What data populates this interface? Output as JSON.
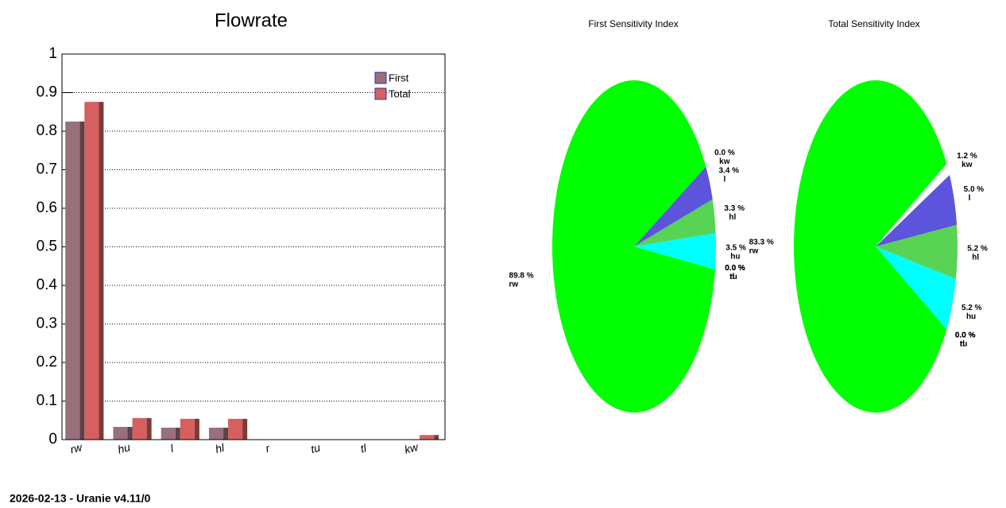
{
  "footer": "2026-02-13 - Uranie v4.11/0",
  "chart_data": [
    {
      "type": "bar",
      "title": "Flowrate",
      "categories": [
        "rw",
        "hu",
        "l",
        "hl",
        "r",
        "tu",
        "tl",
        "kw"
      ],
      "series": [
        {
          "name": "First",
          "color": "#98707a",
          "values": [
            0.825,
            0.033,
            0.031,
            0.031,
            0,
            0,
            0,
            0
          ]
        },
        {
          "name": "Total",
          "color": "#d65f5f",
          "values": [
            0.876,
            0.056,
            0.054,
            0.054,
            0,
            0,
            0,
            0.012
          ]
        }
      ],
      "ylim": [
        0,
        1
      ],
      "yticks": [
        0,
        0.1,
        0.2,
        0.3,
        0.4,
        0.5,
        0.6,
        0.7,
        0.8,
        0.9,
        1
      ],
      "grid": true,
      "legend": "top-right"
    },
    {
      "type": "pie",
      "title": "First Sensitivity Index",
      "categories": [
        "hu",
        "hl",
        "l",
        "kw",
        "rw",
        "r",
        "tu",
        "tl"
      ],
      "values": [
        3.5,
        3.3,
        3.4,
        0.0,
        89.8,
        0.0,
        0.0,
        0.0
      ],
      "value_labels": [
        "3.5 %",
        "3.3 %",
        "3.4 %",
        "0.0 %",
        "89.8 %",
        "0.0 %",
        "0.0 %",
        "0.0 %"
      ],
      "colors": [
        "#00ffff",
        "#59d354",
        "#5c55dc",
        "#ffffff",
        "#00ff00",
        "#ff0000",
        "#ffff00",
        "#ff00ff"
      ]
    },
    {
      "type": "pie",
      "title": "Total Sensitivity Index",
      "categories": [
        "hu",
        "hl",
        "l",
        "kw",
        "rw",
        "r",
        "tu",
        "tl"
      ],
      "values": [
        5.2,
        5.2,
        5.0,
        1.2,
        83.3,
        0.0,
        0.0,
        0.0
      ],
      "value_labels": [
        "5.2 %",
        "5.2 %",
        "5.0 %",
        "1.2 %",
        "83.3 %",
        "0.0 %",
        "0.0 %",
        "0.0 %"
      ],
      "colors": [
        "#00ffff",
        "#59d354",
        "#5c55dc",
        "#ffffff",
        "#00ff00",
        "#ff0000",
        "#ffff00",
        "#ff00ff"
      ]
    }
  ]
}
